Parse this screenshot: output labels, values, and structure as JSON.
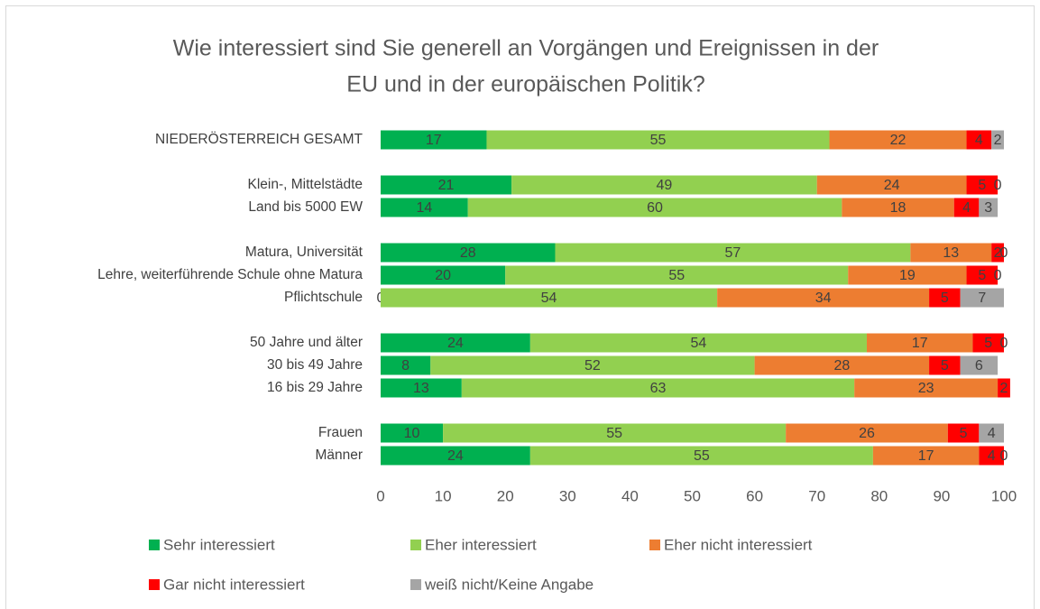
{
  "chart_data": {
    "type": "stacked-barh",
    "title": [
      "Wie interessiert sind Sie generell an Vorgängen und Ereignissen in der",
      "EU und in der europäischen Politik?"
    ],
    "categories": [
      "NIEDERÖSTERREICH GESAMT",
      null,
      "Klein-, Mittelstädte",
      "Land bis 5000 EW",
      null,
      "Matura, Universität",
      "Lehre, weiterführende Schule ohne Matura",
      "Pflichtschule",
      null,
      "50 Jahre und älter",
      "30 bis 49 Jahre",
      "16 bis 29 Jahre",
      null,
      "Frauen",
      "Männer"
    ],
    "series": [
      {
        "name": "Sehr interessiert",
        "color": "#00b050",
        "values": [
          17,
          null,
          21,
          14,
          null,
          28,
          20,
          0,
          null,
          24,
          8,
          13,
          null,
          10,
          24
        ]
      },
      {
        "name": "Eher interessiert",
        "color": "#92d050",
        "values": [
          55,
          null,
          49,
          60,
          null,
          57,
          55,
          54,
          null,
          54,
          52,
          63,
          null,
          55,
          55
        ]
      },
      {
        "name": "Eher nicht interessiert",
        "color": "#ed7d31",
        "values": [
          22,
          null,
          24,
          18,
          null,
          13,
          19,
          34,
          null,
          17,
          28,
          23,
          null,
          26,
          17
        ]
      },
      {
        "name": "Gar nicht interessiert",
        "color": "#ff0000",
        "values": [
          4,
          null,
          5,
          4,
          null,
          2,
          5,
          5,
          null,
          5,
          5,
          2,
          null,
          5,
          4
        ]
      },
      {
        "name": "weiß nicht/Keine Angabe",
        "color": "#a5a5a5",
        "values": [
          2,
          null,
          0,
          3,
          null,
          0,
          0,
          7,
          null,
          0,
          6,
          null,
          null,
          4,
          0
        ]
      }
    ],
    "xlim": [
      0,
      100
    ],
    "xticks": [
      0,
      10,
      20,
      30,
      40,
      50,
      60,
      70,
      80,
      90,
      100
    ],
    "grid": false,
    "legend": "bottom"
  }
}
